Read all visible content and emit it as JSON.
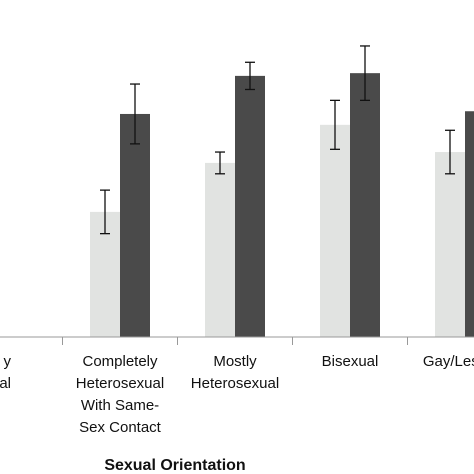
{
  "chart_data": {
    "type": "bar",
    "xlabel": "Sexual Orientation",
    "ylabel": "",
    "title": "",
    "categories": [
      [
        "y",
        "al"
      ],
      [
        "Completely",
        "Heterosexual",
        "With Same-",
        "Sex Contact"
      ],
      [
        "Mostly",
        "Heterosexual"
      ],
      [
        "Bisexual"
      ],
      [
        "Gay/Lesbian"
      ]
    ],
    "ylim": [
      0,
      1
    ],
    "series": [
      {
        "color": "#e1e3e1",
        "values": [
          null,
          0.46,
          0.64,
          0.78,
          0.68
        ],
        "err": [
          null,
          0.08,
          0.04,
          0.09,
          0.08
        ]
      },
      {
        "color": "#4a4a4a",
        "values": [
          null,
          0.82,
          0.96,
          0.97,
          0.83
        ],
        "err": [
          null,
          0.11,
          0.05,
          0.1,
          0.1
        ]
      }
    ],
    "grid": false,
    "legend": "none"
  }
}
